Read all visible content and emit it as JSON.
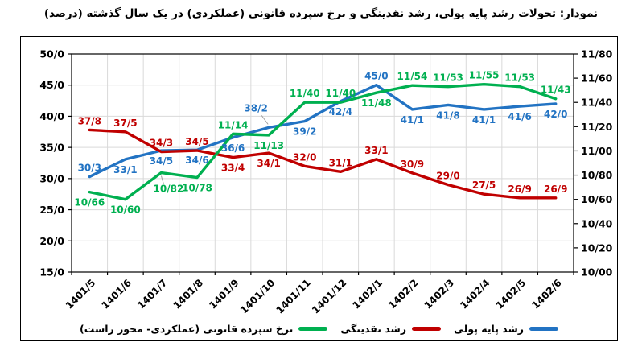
{
  "title": "نمودار: تحولات رشد پایه پولی، رشد نقدینگی و نرخ سپرده قانونی (عملکردی) در یک سال گذشته (درصد)",
  "chart_data": {
    "type": "line",
    "grid": true,
    "legend_position": "bottom",
    "categories": [
      "1401/5",
      "1401/6",
      "1401/7",
      "1401/8",
      "1401/9",
      "1401/10",
      "1401/11",
      "1401/12",
      "1402/1",
      "1402/2",
      "1402/3",
      "1402/4",
      "1402/5",
      "1402/6"
    ],
    "left_axis": {
      "min": 15,
      "max": 50,
      "ticks": [
        "50/0",
        "45/0",
        "40/0",
        "35/0",
        "30/0",
        "25/0",
        "20/0",
        "15/0"
      ]
    },
    "right_axis": {
      "min": 10,
      "max": 11.8,
      "ticks": [
        "11/80",
        "11/60",
        "11/40",
        "11/20",
        "11/00",
        "10/80",
        "10/60",
        "10/40",
        "10/20",
        "10/00"
      ]
    },
    "series": [
      {
        "name": "رشد پایه پولی",
        "color": "#2273C3",
        "axis": "left",
        "values": [
          30.3,
          33.1,
          34.5,
          34.6,
          36.6,
          38.2,
          39.2,
          42.4,
          45.0,
          41.1,
          41.8,
          41.1,
          41.6,
          42.0
        ],
        "labels": [
          "30/3",
          "33/1",
          "34/5",
          "34/6",
          "36/6",
          "38/2",
          "39/2",
          "42/4",
          "45/0",
          "41/1",
          "41/8",
          "41/1",
          "41/6",
          "42/0"
        ],
        "label_pos": [
          "above",
          "below",
          "below",
          "below",
          "below",
          "above2",
          "below",
          "below",
          "above",
          "below",
          "below",
          "below",
          "below",
          "below"
        ]
      },
      {
        "name": "رشد نقدینگی",
        "color": "#C00000",
        "axis": "left",
        "values": [
          37.8,
          37.5,
          34.3,
          34.5,
          33.4,
          34.1,
          32.0,
          31.1,
          33.1,
          30.9,
          29.0,
          27.5,
          26.9,
          26.9
        ],
        "labels": [
          "37/8",
          "37/5",
          "34/3",
          "34/5",
          "33/4",
          "34/1",
          "32/0",
          "31/1",
          "33/1",
          "30/9",
          "29/0",
          "27/5",
          "26/9",
          "26/9"
        ],
        "label_pos": [
          "above",
          "above",
          "above",
          "above",
          "below",
          "below",
          "above",
          "above",
          "above",
          "above",
          "above",
          "above",
          "above",
          "above"
        ]
      },
      {
        "name": "نرخ سپرده قانونی (عملکردی- محور راست)",
        "color": "#00B050",
        "axis": "right",
        "values": [
          10.66,
          10.6,
          10.82,
          10.78,
          11.14,
          11.13,
          11.4,
          11.4,
          11.48,
          11.54,
          11.53,
          11.55,
          11.53,
          11.43
        ],
        "labels": [
          "10/66",
          "10/60",
          "10/82",
          "10/78",
          "11/14",
          "11/13",
          "11/40",
          "11/40",
          "11/48",
          "11/54",
          "11/53",
          "11/55",
          "11/53",
          "11/43"
        ],
        "label_pos": [
          "below",
          "below",
          "below2",
          "below",
          "above",
          "below",
          "above",
          "above",
          "below",
          "above",
          "above",
          "above",
          "above",
          "above"
        ]
      }
    ],
    "colors": {
      "grid": "#D9D9D9",
      "axis": "#000000",
      "leader": "#A0A0A0"
    }
  }
}
